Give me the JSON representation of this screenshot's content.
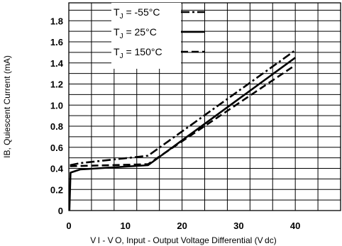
{
  "chart_data": {
    "type": "line",
    "title": "",
    "xlabel": "V I - V O, Input - Output Voltage Differential (V dc)",
    "ylabel": "IB, Quiescent Current (mA)",
    "xlim": [
      0,
      48
    ],
    "ylim": [
      0,
      1.97
    ],
    "grid": true,
    "legend_position": "top-center",
    "x_ticks": [
      {
        "value": 0,
        "label": "0"
      },
      {
        "value": 10,
        "label": "10"
      },
      {
        "value": 20,
        "label": "20"
      },
      {
        "value": 30,
        "label": "30"
      },
      {
        "value": 40,
        "label": "40"
      }
    ],
    "y_ticks": [
      {
        "value": 0,
        "label": "0"
      },
      {
        "value": 0.2,
        "label": "0.2"
      },
      {
        "value": 0.4,
        "label": "0.4"
      },
      {
        "value": 0.6,
        "label": "0.6"
      },
      {
        "value": 0.8,
        "label": "0.8"
      },
      {
        "value": 1.0,
        "label": "1.0"
      },
      {
        "value": 1.2,
        "label": "1.2"
      },
      {
        "value": 1.4,
        "label": "1.4"
      },
      {
        "value": 1.6,
        "label": "1.6"
      },
      {
        "value": 1.8,
        "label": "1.8"
      }
    ],
    "series": [
      {
        "name": "TJ = -55°C",
        "legend_main": "T",
        "legend_sub": "J",
        "legend_rest": " = -55°C",
        "style": "dashdot",
        "points": [
          [
            0.2,
            0.43
          ],
          [
            2,
            0.45
          ],
          [
            14,
            0.52
          ],
          [
            40,
            1.52
          ]
        ]
      },
      {
        "name": "TJ = 25°C",
        "legend_main": "T",
        "legend_sub": "J",
        "legend_rest": " = 25°C",
        "style": "solid",
        "points": [
          [
            0.1,
            0.0
          ],
          [
            0.3,
            0.36
          ],
          [
            2,
            0.39
          ],
          [
            14,
            0.43
          ],
          [
            40,
            1.45
          ]
        ]
      },
      {
        "name": "TJ = 150°C",
        "legend_main": "T",
        "legend_sub": "J",
        "legend_rest": " = 150°C",
        "style": "dashed",
        "points": [
          [
            0.2,
            0.42
          ],
          [
            14,
            0.44
          ],
          [
            40,
            1.38
          ]
        ]
      }
    ]
  }
}
